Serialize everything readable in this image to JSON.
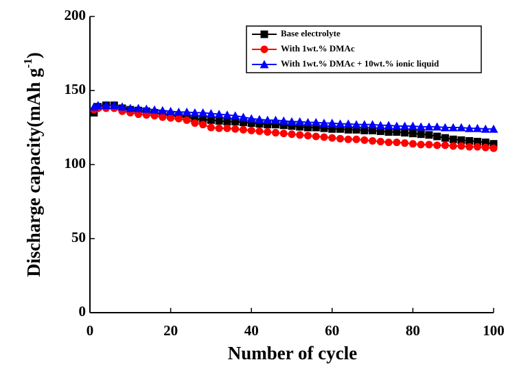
{
  "chart_data": {
    "type": "line",
    "xlabel": "Number of cycle",
    "ylabel": "Discharge capacity(mAh g",
    "ylabel_superscript": "-1",
    "ylabel_end": ")",
    "x": [
      1,
      2,
      4,
      6,
      8,
      10,
      12,
      14,
      16,
      18,
      20,
      22,
      24,
      26,
      28,
      30,
      32,
      34,
      36,
      38,
      40,
      42,
      44,
      46,
      48,
      50,
      52,
      54,
      56,
      58,
      60,
      62,
      64,
      66,
      68,
      70,
      72,
      74,
      76,
      78,
      80,
      82,
      84,
      86,
      88,
      90,
      92,
      94,
      96,
      98,
      100
    ],
    "series": [
      {
        "name": "Base electrolyte",
        "color": "#000000",
        "marker": "square",
        "values": [
          135,
          139,
          140,
          140,
          138,
          137,
          136.5,
          136,
          135,
          134,
          133,
          132.5,
          132,
          131,
          130.5,
          130,
          129.5,
          129,
          129,
          128.5,
          128,
          127.5,
          127,
          127,
          126.5,
          126,
          125.5,
          125,
          125,
          124.5,
          124,
          124,
          123.5,
          123.5,
          123,
          123,
          122.5,
          122,
          122,
          121.5,
          121,
          120.5,
          120,
          119,
          118,
          117,
          116.5,
          116,
          115.5,
          115,
          114
        ]
      },
      {
        "name": "With 1wt.% DMAc",
        "color": "#ff0000",
        "marker": "circle",
        "values": [
          137,
          138,
          138,
          138,
          136,
          135,
          134,
          133.5,
          133,
          132,
          131.5,
          131,
          130,
          128,
          127,
          125,
          124.5,
          124.5,
          124,
          123.5,
          123,
          122.5,
          122,
          121.5,
          121,
          120.5,
          120,
          119.5,
          119,
          118.5,
          118,
          117.5,
          117,
          117,
          116.5,
          116,
          115.5,
          115,
          115,
          114.5,
          114,
          113.5,
          113.5,
          113,
          113,
          112.5,
          112.5,
          112,
          112,
          111.5,
          111
        ]
      },
      {
        "name": "With 1wt.% DMAc + 10wt.% ionic liquid",
        "color": "#0000ff",
        "marker": "triangle",
        "values": [
          139,
          140,
          140,
          140,
          139,
          138,
          138,
          137.5,
          137,
          136.5,
          136,
          135.5,
          135.5,
          135,
          135,
          134.5,
          134,
          133.5,
          133,
          132,
          131,
          130.5,
          130,
          130,
          129.5,
          129,
          129,
          128.5,
          128.5,
          128,
          128,
          127.5,
          127.5,
          127,
          127,
          127,
          126.5,
          126.5,
          126,
          126,
          126,
          125.5,
          125.5,
          125.5,
          125,
          125,
          125,
          124.5,
          124.5,
          124,
          124
        ]
      }
    ],
    "xlim": [
      0,
      100
    ],
    "xticks": [
      0,
      20,
      40,
      60,
      80,
      100
    ],
    "ylim": [
      0,
      200
    ],
    "yticks": [
      0,
      50,
      100,
      150,
      200
    ],
    "legend": "upper right"
  }
}
